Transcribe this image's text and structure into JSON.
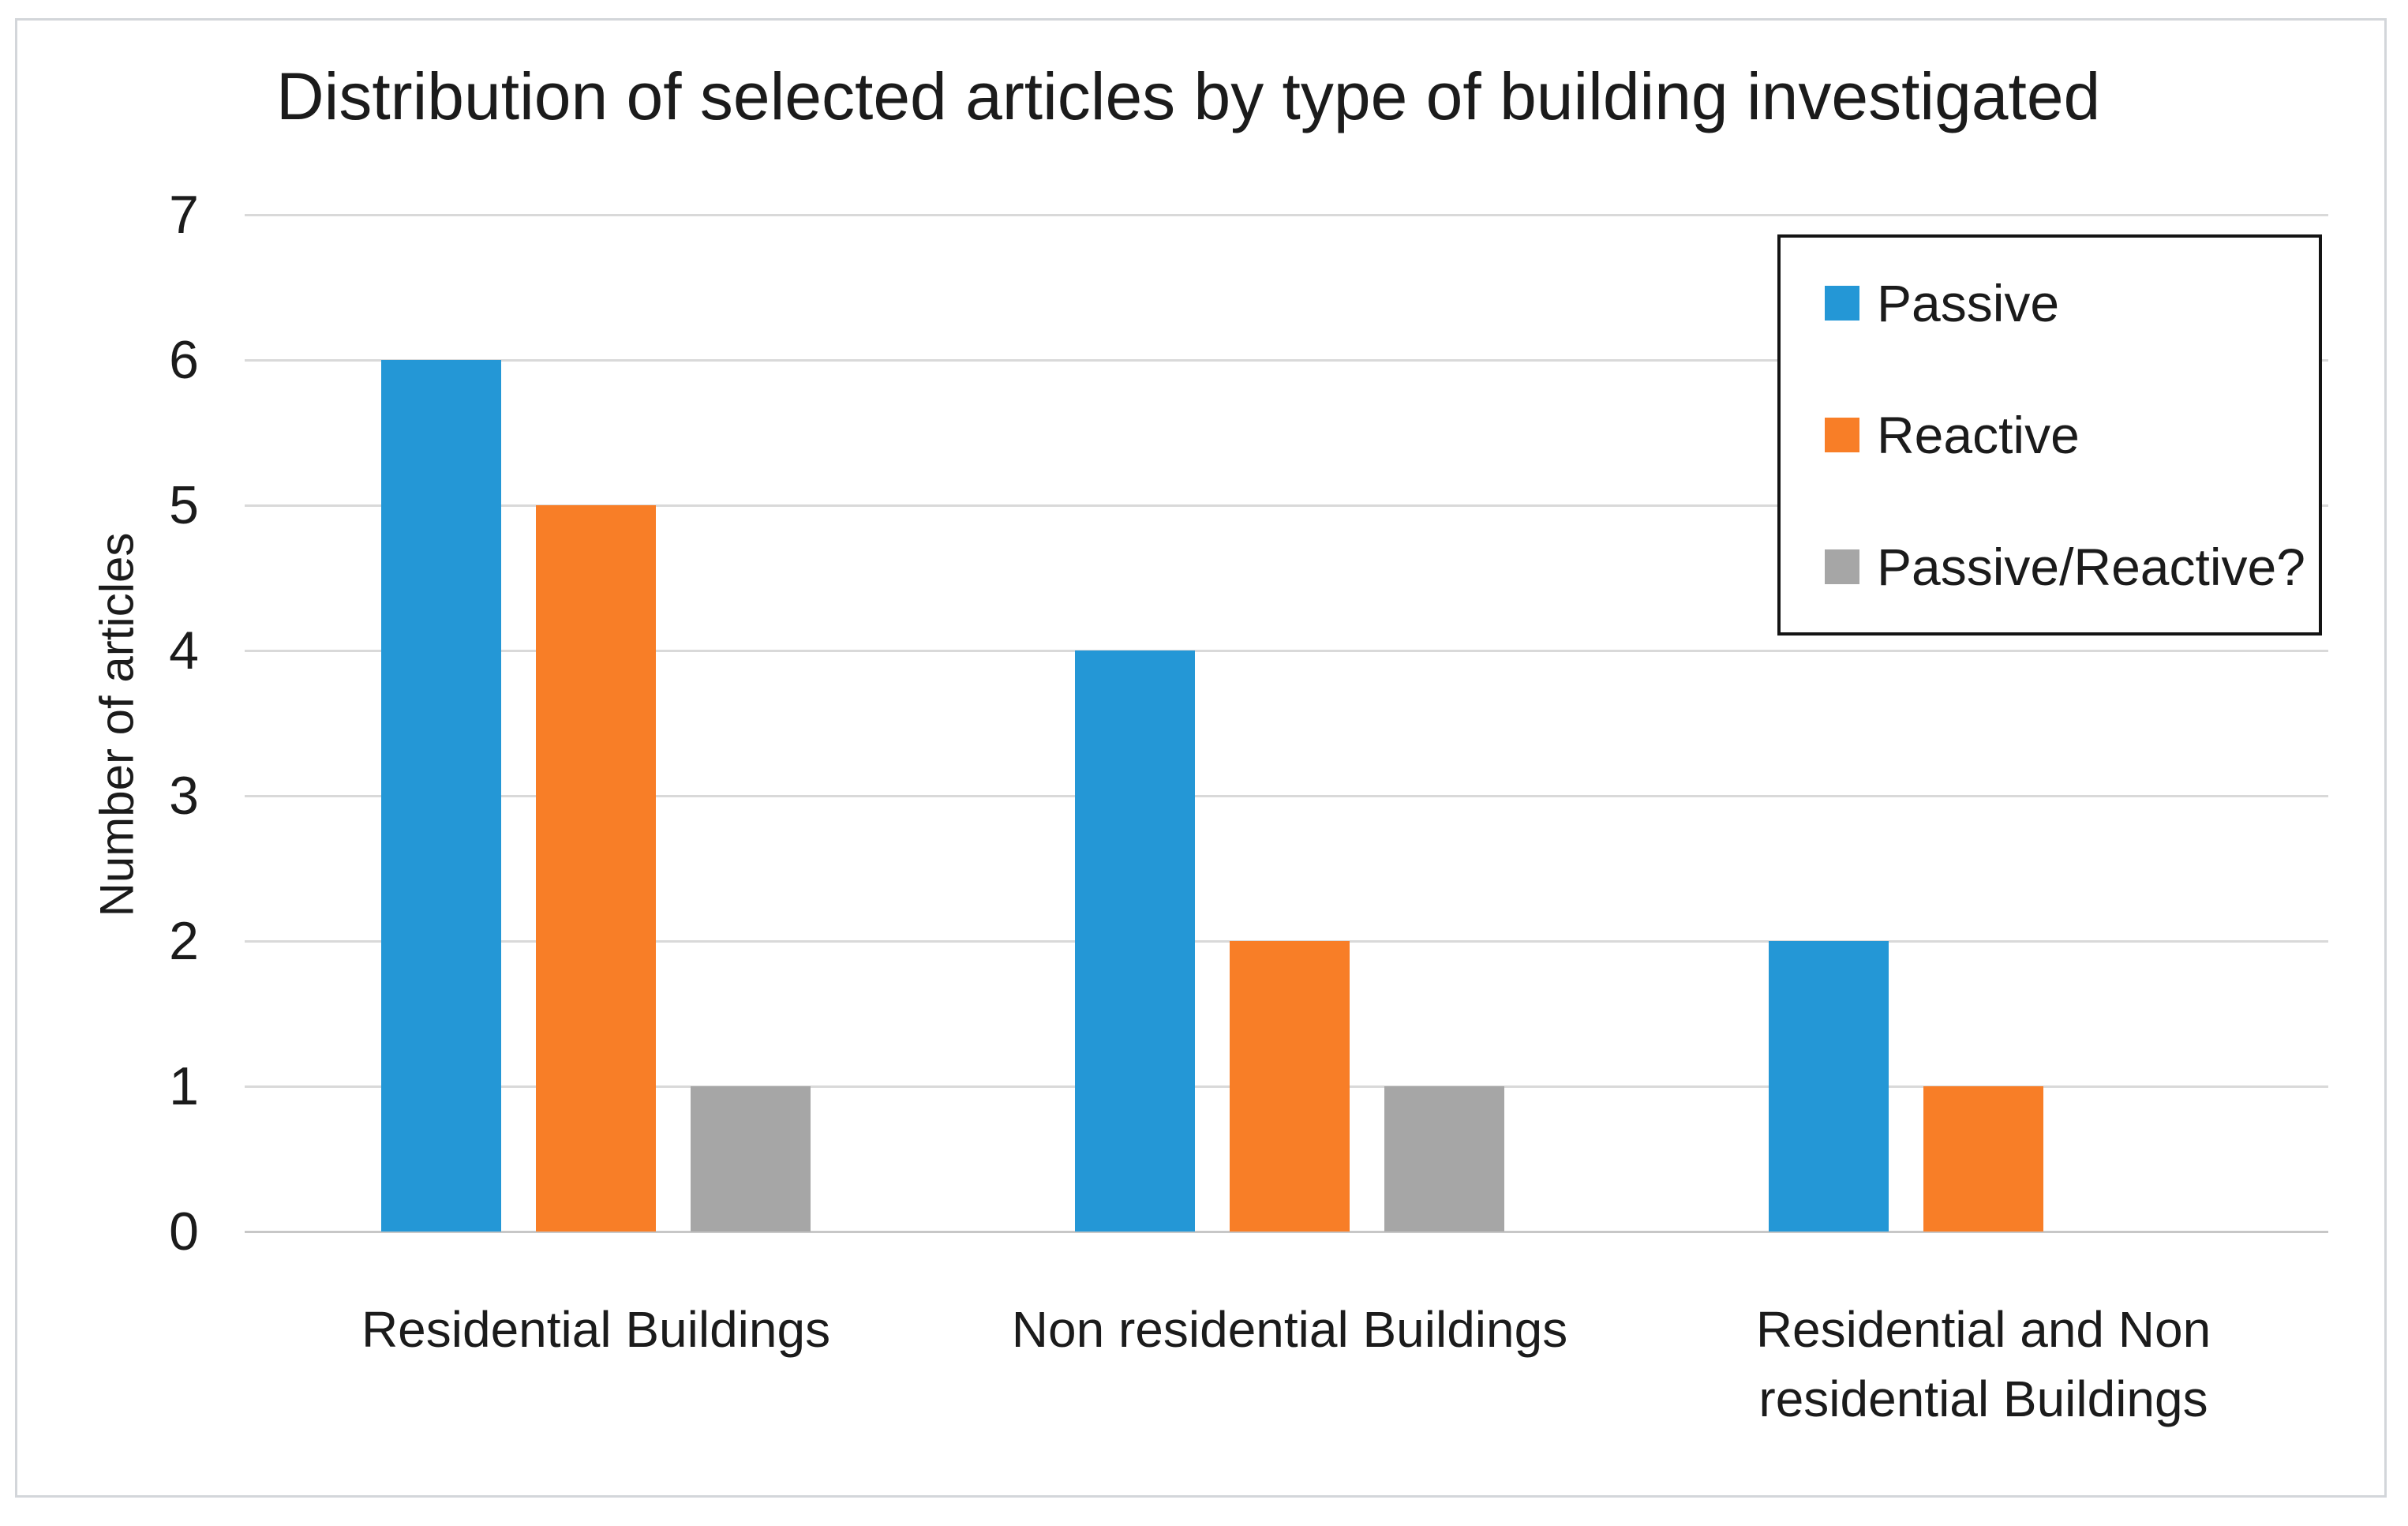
{
  "figure": {
    "background": "#ffffff",
    "border_color": "#d3d6da"
  },
  "chart_data": {
    "type": "bar",
    "title": "Distribution of selected articles by type of building investigated",
    "xlabel": "",
    "ylabel": "Number of articles",
    "categories": [
      "Residential Buildings",
      "Non residential Buildings",
      "Residential and Non residential Buildings"
    ],
    "series": [
      {
        "name": "Passive",
        "color": "#2497d6",
        "values": [
          6,
          4,
          2
        ]
      },
      {
        "name": "Reactive",
        "color": "#f87e27",
        "values": [
          5,
          2,
          1
        ]
      },
      {
        "name": "Passive/Reactive?",
        "color": "#a6a6a6",
        "values": [
          1,
          1,
          0
        ]
      }
    ],
    "ylim": [
      0,
      7
    ],
    "yticks": [
      0,
      1,
      2,
      3,
      4,
      5,
      6,
      7
    ],
    "grid": true,
    "gridline_color": "#d9d9d9",
    "axis_line_color": "#c7c7c7",
    "text_color": "#1b1b1b",
    "legend": {
      "position": "top-right",
      "border_color": "#141414",
      "entries": [
        "Passive",
        "Reactive",
        "Passive/Reactive?"
      ]
    }
  }
}
